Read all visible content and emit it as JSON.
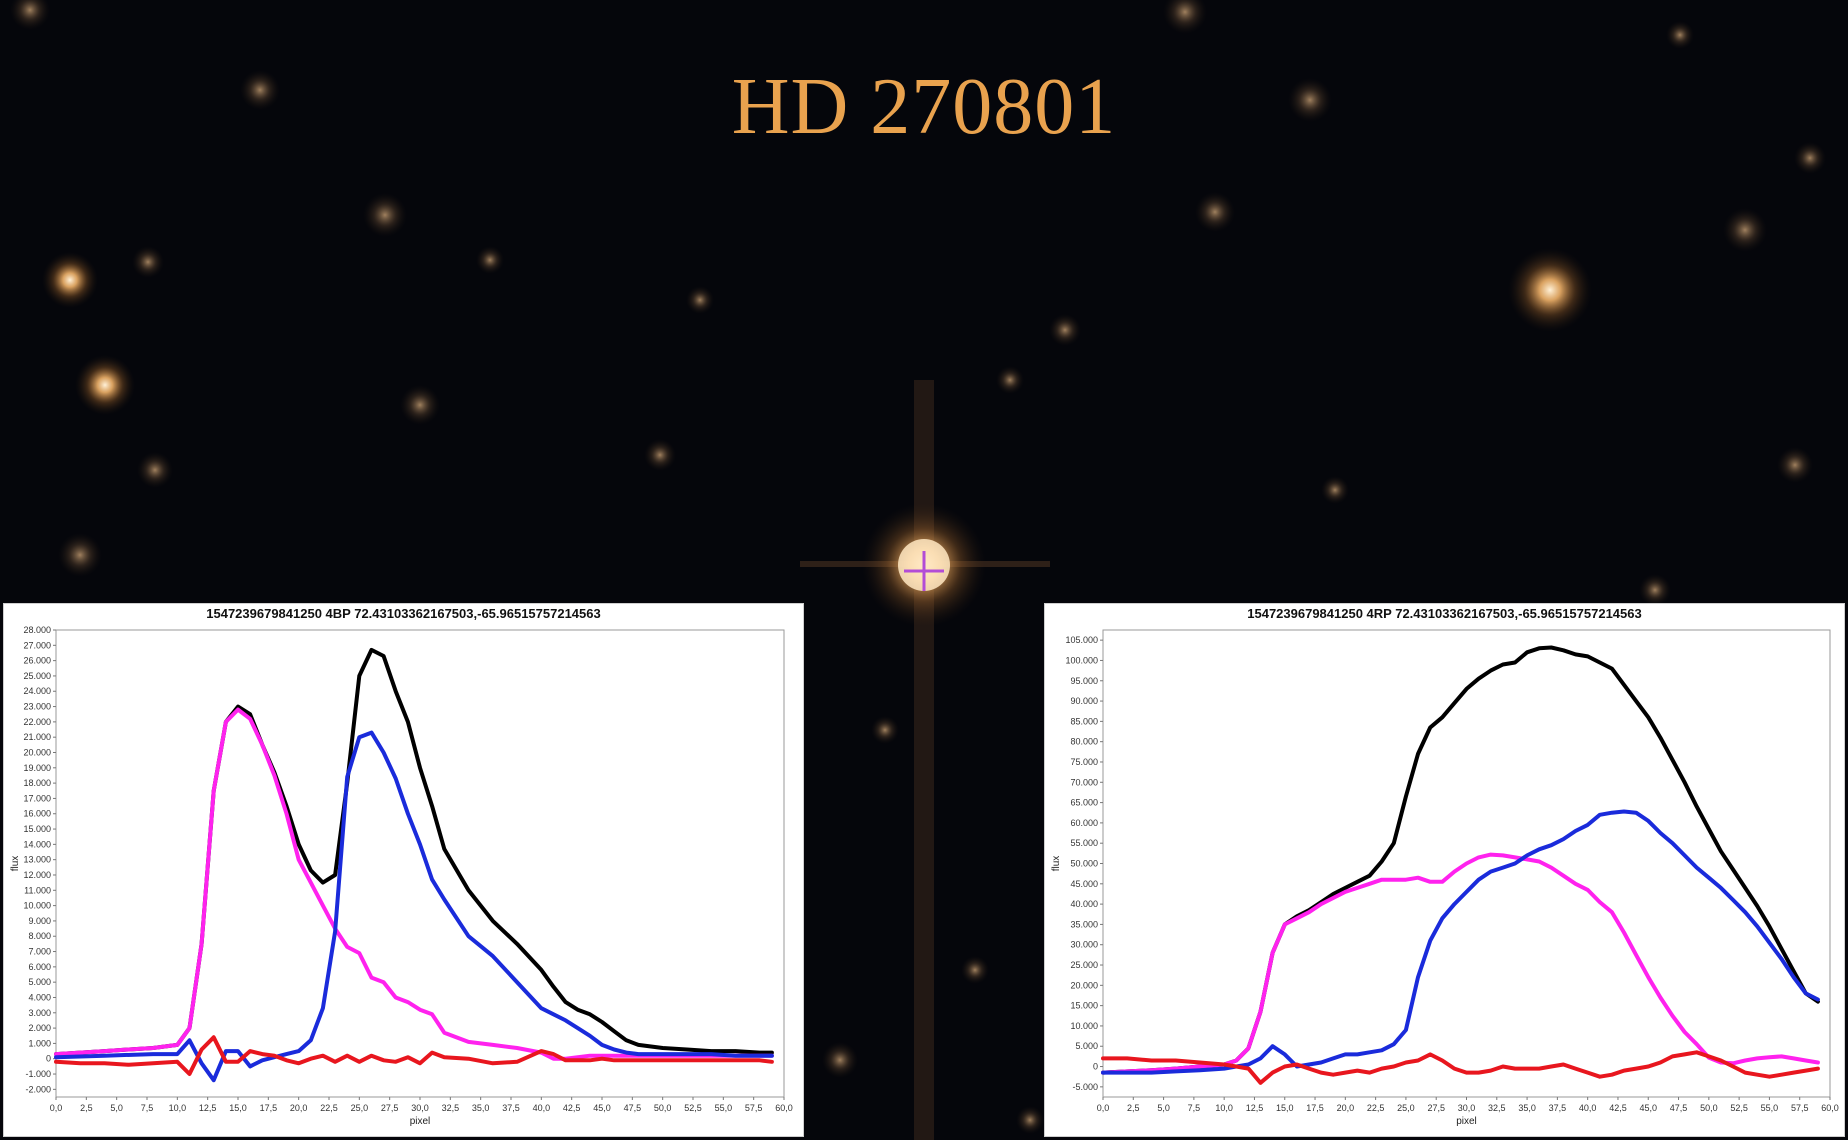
{
  "page": {
    "title": "HD 270801"
  },
  "colors": {
    "title": "#e9a24e",
    "sky": "#05060b",
    "reticle": "#b34cd6"
  },
  "chart_data": [
    {
      "type": "line",
      "title": "1547239679841250 4BP 72.43103362167503,-65.96515757214563",
      "xlabel": "pixel",
      "ylabel": "flux",
      "xlim": [
        0,
        60
      ],
      "ylim": [
        -2500,
        28000
      ],
      "xticks": [
        0,
        2.5,
        5,
        7.5,
        10,
        12.5,
        15,
        17.5,
        20,
        22.5,
        25,
        27.5,
        30,
        32.5,
        35,
        37.5,
        40,
        42.5,
        45,
        47.5,
        50,
        52.5,
        55,
        57.5,
        60
      ],
      "xtick_labels": [
        "0,0",
        "2,5",
        "5,0",
        "7,5",
        "10,0",
        "12,5",
        "15,0",
        "17,5",
        "20,0",
        "22,5",
        "25,0",
        "27,5",
        "30,0",
        "32,5",
        "35,0",
        "37,5",
        "40,0",
        "42,5",
        "45,0",
        "47,5",
        "50,0",
        "52,5",
        "55,0",
        "57,5",
        "60,0"
      ],
      "yticks": [
        -2000,
        -1000,
        0,
        1000,
        2000,
        3000,
        4000,
        5000,
        6000,
        7000,
        8000,
        9000,
        10000,
        11000,
        12000,
        13000,
        14000,
        15000,
        16000,
        17000,
        18000,
        19000,
        20000,
        21000,
        22000,
        23000,
        24000,
        25000,
        26000,
        27000,
        28000
      ],
      "ytick_labels": [
        "-2.000",
        "-1.000",
        "0",
        "1.000",
        "2.000",
        "3.000",
        "4.000",
        "5.000",
        "6.000",
        "7.000",
        "8.000",
        "9.000",
        "10.000",
        "11.000",
        "12.000",
        "13.000",
        "14.000",
        "15.000",
        "16.000",
        "17.000",
        "18.000",
        "19.000",
        "20.000",
        "21.000",
        "22.000",
        "23.000",
        "24.000",
        "25.000",
        "26.000",
        "27.000",
        "28.000"
      ],
      "grid": false,
      "series": [
        {
          "color": "#000000",
          "x": [
            0,
            2,
            4,
            6,
            8,
            10,
            11,
            12,
            13,
            14,
            15,
            16,
            17,
            18,
            19,
            20,
            21,
            22,
            23,
            24,
            25,
            26,
            27,
            28,
            29,
            30,
            31,
            32,
            34,
            36,
            38,
            40,
            41,
            42,
            43,
            44,
            45,
            46,
            47,
            48,
            50,
            52,
            54,
            56,
            58,
            59
          ],
          "y": [
            300,
            400,
            500,
            600,
            700,
            900,
            2000,
            7500,
            17500,
            22000,
            23000,
            22500,
            20500,
            18700,
            16500,
            14000,
            12300,
            11500,
            12000,
            18000,
            25000,
            26700,
            26300,
            24000,
            22000,
            19000,
            16500,
            13700,
            11000,
            9000,
            7500,
            5800,
            4700,
            3700,
            3200,
            2900,
            2400,
            1800,
            1200,
            900,
            700,
            600,
            500,
            500,
            400,
            400
          ]
        },
        {
          "color": "#ff22ee",
          "x": [
            0,
            2,
            4,
            6,
            8,
            10,
            11,
            12,
            13,
            14,
            15,
            16,
            17,
            18,
            19,
            20,
            21,
            22,
            23,
            24,
            25,
            26,
            27,
            28,
            29,
            30,
            31,
            32,
            34,
            36,
            38,
            40,
            41,
            42,
            44,
            46,
            48,
            50,
            52,
            54,
            56,
            58,
            59
          ],
          "y": [
            300,
            400,
            500,
            600,
            700,
            900,
            2000,
            7500,
            17500,
            22000,
            22800,
            22200,
            20500,
            18500,
            16000,
            13000,
            11500,
            10000,
            8500,
            7300,
            6900,
            5300,
            5000,
            4000,
            3700,
            3200,
            2900,
            1700,
            1100,
            900,
            700,
            400,
            0,
            0,
            200,
            200,
            200,
            200,
            200,
            200,
            200,
            200,
            200
          ]
        },
        {
          "color": "#1a2bdb",
          "x": [
            0,
            4,
            8,
            10,
            11,
            12,
            13,
            14,
            15,
            16,
            17,
            18,
            19,
            20,
            21,
            22,
            23,
            24,
            25,
            26,
            27,
            28,
            29,
            30,
            31,
            32,
            34,
            36,
            38,
            40,
            41,
            42,
            43,
            44,
            45,
            46,
            47,
            48,
            50,
            52,
            54,
            56,
            58,
            59
          ],
          "y": [
            100,
            200,
            300,
            300,
            1200,
            -300,
            -1400,
            500,
            500,
            -500,
            -100,
            100,
            300,
            500,
            1200,
            3300,
            8300,
            18400,
            21000,
            21300,
            20000,
            18300,
            16000,
            14000,
            11700,
            10400,
            8000,
            6700,
            5000,
            3300,
            2900,
            2500,
            2000,
            1500,
            900,
            600,
            400,
            300,
            300,
            300,
            300,
            200,
            200,
            200
          ]
        },
        {
          "color": "#e8161e",
          "x": [
            0,
            2,
            4,
            6,
            8,
            10,
            11,
            12,
            13,
            14,
            15,
            16,
            17,
            18,
            19,
            20,
            21,
            22,
            23,
            24,
            25,
            26,
            27,
            28,
            29,
            30,
            31,
            32,
            34,
            36,
            38,
            40,
            41,
            42,
            43,
            44,
            45,
            46,
            48,
            50,
            52,
            54,
            56,
            58,
            59
          ],
          "y": [
            -200,
            -300,
            -300,
            -400,
            -300,
            -200,
            -1000,
            600,
            1400,
            -200,
            -200,
            500,
            300,
            200,
            -100,
            -300,
            0,
            200,
            -200,
            200,
            -200,
            200,
            -100,
            -200,
            100,
            -300,
            400,
            100,
            0,
            -300,
            -200,
            500,
            300,
            -100,
            -100,
            -100,
            0,
            -100,
            -100,
            -100,
            -100,
            -100,
            -100,
            -100,
            -200
          ]
        }
      ]
    },
    {
      "type": "line",
      "title": "1547239679841250 4RP 72.43103362167503,-65.96515757214563",
      "xlabel": "pixel",
      "ylabel": "flux",
      "xlim": [
        0,
        60
      ],
      "ylim": [
        -7500,
        107500
      ],
      "xticks": [
        0,
        2.5,
        5,
        7.5,
        10,
        12.5,
        15,
        17.5,
        20,
        22.5,
        25,
        27.5,
        30,
        32.5,
        35,
        37.5,
        40,
        42.5,
        45,
        47.5,
        50,
        52.5,
        55,
        57.5,
        60
      ],
      "xtick_labels": [
        "0,0",
        "2,5",
        "5,0",
        "7,5",
        "10,0",
        "12,5",
        "15,0",
        "17,5",
        "20,0",
        "22,5",
        "25,0",
        "27,5",
        "30,0",
        "32,5",
        "35,0",
        "37,5",
        "40,0",
        "42,5",
        "45,0",
        "47,5",
        "50,0",
        "52,5",
        "55,0",
        "57,5",
        "60,0"
      ],
      "yticks": [
        -5000,
        0,
        5000,
        10000,
        15000,
        20000,
        25000,
        30000,
        35000,
        40000,
        45000,
        50000,
        55000,
        60000,
        65000,
        70000,
        75000,
        80000,
        85000,
        90000,
        95000,
        100000,
        105000
      ],
      "ytick_labels": [
        "-5.000",
        "0",
        "5.000",
        "10.000",
        "15.000",
        "20.000",
        "25.000",
        "30.000",
        "35.000",
        "40.000",
        "45.000",
        "50.000",
        "55.000",
        "60.000",
        "65.000",
        "70.000",
        "75.000",
        "80.000",
        "85.000",
        "90.000",
        "95.000",
        "100.000",
        "105.000"
      ],
      "grid": false,
      "series": [
        {
          "color": "#000000",
          "x": [
            0,
            2,
            4,
            6,
            8,
            10,
            11,
            12,
            13,
            14,
            15,
            16,
            17,
            18,
            19,
            20,
            21,
            22,
            23,
            24,
            25,
            26,
            27,
            28,
            29,
            30,
            31,
            32,
            33,
            34,
            35,
            36,
            37,
            38,
            39,
            40,
            41,
            42,
            43,
            44,
            45,
            46,
            47,
            48,
            49,
            50,
            51,
            52,
            53,
            54,
            55,
            56,
            57,
            58,
            59
          ],
          "y": [
            -1500,
            -1200,
            -900,
            -500,
            0,
            500,
            1500,
            4500,
            13500,
            28000,
            35000,
            37000,
            38500,
            40500,
            42500,
            44000,
            45500,
            47000,
            50500,
            55000,
            66500,
            77000,
            83500,
            86000,
            89500,
            93000,
            95500,
            97500,
            99000,
            99500,
            102000,
            103000,
            103200,
            102500,
            101500,
            101000,
            99500,
            98000,
            94000,
            90000,
            86000,
            81000,
            75500,
            70000,
            64000,
            58500,
            53000,
            48500,
            44000,
            39500,
            34500,
            29000,
            23500,
            18000,
            16000
          ]
        },
        {
          "color": "#ff22ee",
          "x": [
            0,
            2,
            4,
            6,
            8,
            10,
            11,
            12,
            13,
            14,
            15,
            16,
            17,
            18,
            19,
            20,
            21,
            22,
            23,
            24,
            25,
            26,
            27,
            28,
            29,
            30,
            31,
            32,
            33,
            34,
            35,
            36,
            37,
            38,
            39,
            40,
            41,
            42,
            43,
            44,
            45,
            46,
            47,
            48,
            49,
            50,
            51,
            52,
            53,
            54,
            55,
            56,
            57,
            58,
            59
          ],
          "y": [
            -1500,
            -1200,
            -900,
            -500,
            0,
            500,
            1500,
            4500,
            13500,
            28000,
            35000,
            36500,
            38000,
            40000,
            41500,
            43000,
            44000,
            45000,
            46000,
            46000,
            46000,
            46500,
            45500,
            45500,
            48000,
            50000,
            51500,
            52200,
            52000,
            51500,
            51000,
            50500,
            49000,
            47000,
            45000,
            43500,
            40500,
            38000,
            33000,
            27500,
            22000,
            17000,
            12500,
            8500,
            5500,
            2200,
            1000,
            800,
            1500,
            2000,
            2300,
            2500,
            2000,
            1500,
            1000
          ]
        },
        {
          "color": "#1a2bdb",
          "x": [
            0,
            2,
            4,
            6,
            8,
            10,
            11,
            12,
            13,
            14,
            15,
            16,
            17,
            18,
            19,
            20,
            21,
            22,
            23,
            24,
            25,
            26,
            27,
            28,
            29,
            30,
            31,
            32,
            33,
            34,
            35,
            36,
            37,
            38,
            39,
            40,
            41,
            42,
            43,
            44,
            45,
            46,
            47,
            48,
            49,
            50,
            51,
            52,
            53,
            54,
            55,
            56,
            57,
            58,
            59
          ],
          "y": [
            -1500,
            -1500,
            -1500,
            -1200,
            -900,
            -500,
            0,
            500,
            2000,
            5000,
            3000,
            0,
            500,
            1000,
            2000,
            3000,
            3000,
            3500,
            4000,
            5500,
            9000,
            22000,
            31000,
            36500,
            40000,
            43000,
            46000,
            48000,
            49000,
            50000,
            52000,
            53500,
            54500,
            56000,
            58000,
            59500,
            62000,
            62500,
            62800,
            62500,
            60500,
            57500,
            55000,
            52000,
            49000,
            46500,
            44000,
            41000,
            38000,
            34500,
            30500,
            26500,
            22000,
            18000,
            16500
          ]
        },
        {
          "color": "#e8161e",
          "x": [
            0,
            2,
            4,
            6,
            8,
            10,
            11,
            12,
            13,
            14,
            15,
            16,
            17,
            18,
            19,
            20,
            21,
            22,
            23,
            24,
            25,
            26,
            27,
            28,
            29,
            30,
            31,
            32,
            33,
            34,
            35,
            36,
            37,
            38,
            39,
            40,
            41,
            42,
            43,
            44,
            45,
            46,
            47,
            48,
            49,
            50,
            51,
            52,
            53,
            54,
            55,
            56,
            57,
            58,
            59
          ],
          "y": [
            2000,
            2000,
            1500,
            1500,
            1000,
            500,
            0,
            -500,
            -4000,
            -1500,
            0,
            500,
            -500,
            -1500,
            -2000,
            -1500,
            -1000,
            -1500,
            -500,
            0,
            1000,
            1500,
            3000,
            1500,
            -500,
            -1500,
            -1500,
            -1000,
            0,
            -500,
            -500,
            -500,
            0,
            500,
            -500,
            -1500,
            -2500,
            -2000,
            -1000,
            -500,
            0,
            1000,
            2500,
            3000,
            3500,
            2500,
            1500,
            0,
            -1500,
            -2000,
            -2500,
            -2000,
            -1500,
            -1000,
            -500
          ]
        }
      ]
    }
  ]
}
